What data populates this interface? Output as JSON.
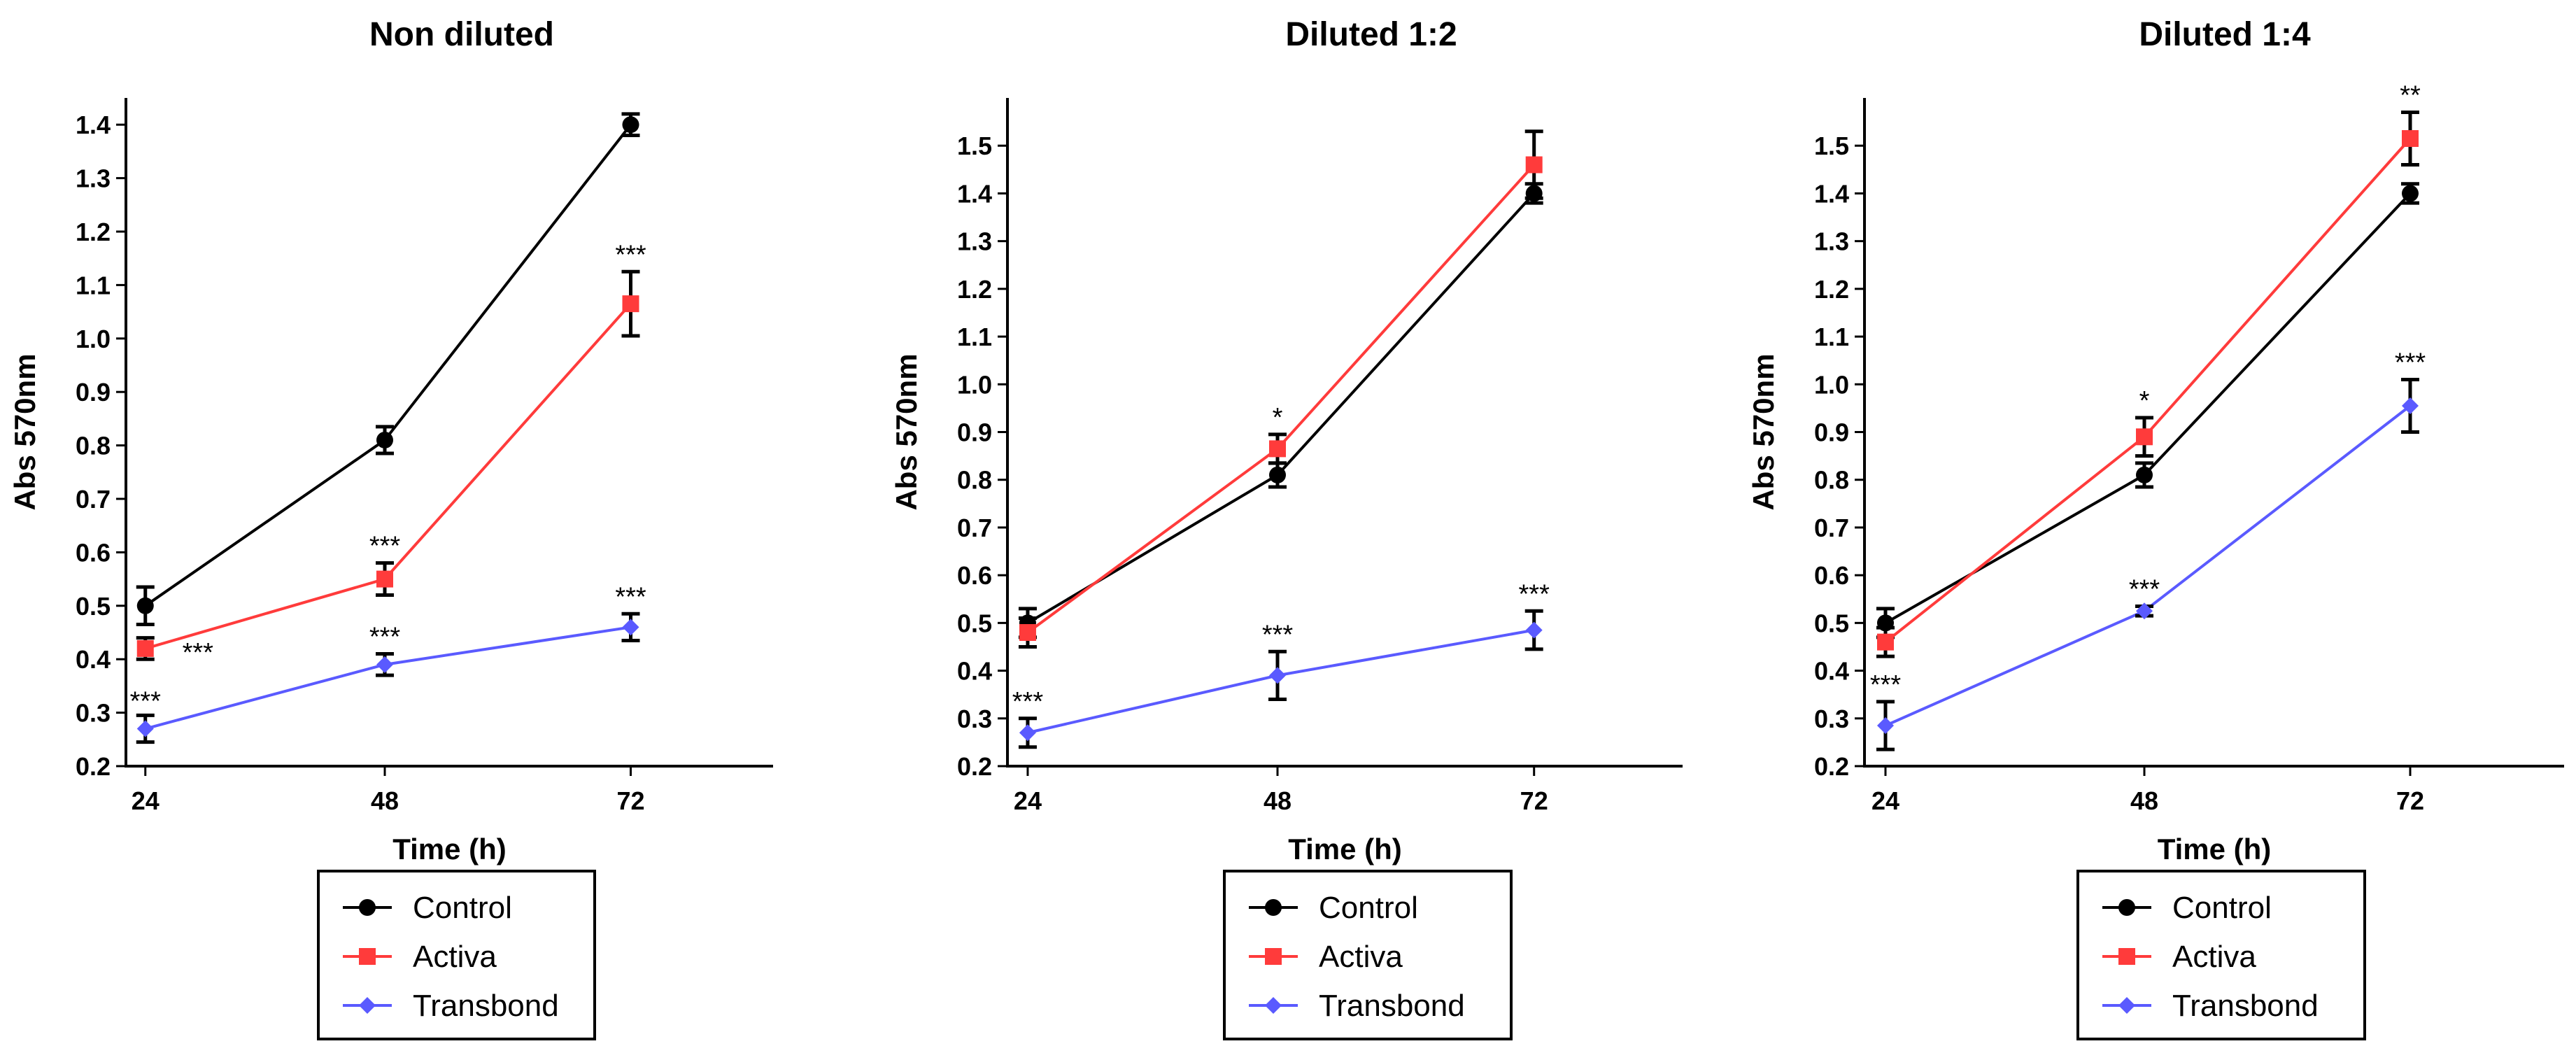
{
  "chart_data": [
    {
      "type": "line",
      "title": "Non diluted",
      "xlabel": "Time (h)",
      "ylabel": "Abs 570nm",
      "x": [
        24,
        48,
        72
      ],
      "ylim": [
        0.2,
        1.45
      ],
      "yticks": [
        0.2,
        0.3,
        0.4,
        0.5,
        0.6,
        0.7,
        0.8,
        0.9,
        1.0,
        1.1,
        1.2,
        1.3,
        1.4
      ],
      "legend_position": "bottom-center",
      "series": [
        {
          "name": "Control",
          "color": "#000000",
          "marker": "circle",
          "values": [
            0.5,
            0.81,
            1.4
          ],
          "errors": [
            0.035,
            0.025,
            0.02
          ],
          "sig": [
            "",
            "",
            ""
          ]
        },
        {
          "name": "Activa",
          "color": "#ff3b3b",
          "marker": "square",
          "values": [
            0.42,
            0.55,
            1.065
          ],
          "errors": [
            0.02,
            0.03,
            0.06
          ],
          "sig": [
            "***",
            "***",
            "***"
          ]
        },
        {
          "name": "Transbond",
          "color": "#5a5aff",
          "marker": "diamond",
          "values": [
            0.27,
            0.39,
            0.46
          ],
          "errors": [
            0.025,
            0.02,
            0.025
          ],
          "sig": [
            "***",
            "***",
            "***"
          ]
        }
      ]
    },
    {
      "type": "line",
      "title": "Diluted 1:2",
      "xlabel": "Time (h)",
      "ylabel": "Abs 570nm",
      "x": [
        24,
        48,
        72
      ],
      "ylim": [
        0.2,
        1.6
      ],
      "yticks": [
        0.2,
        0.3,
        0.4,
        0.5,
        0.6,
        0.7,
        0.8,
        0.9,
        1.0,
        1.1,
        1.2,
        1.3,
        1.4,
        1.5
      ],
      "legend_position": "bottom-center",
      "series": [
        {
          "name": "Control",
          "color": "#000000",
          "marker": "circle",
          "values": [
            0.5,
            0.81,
            1.4
          ],
          "errors": [
            0.03,
            0.025,
            0.02
          ],
          "sig": [
            "",
            "",
            ""
          ]
        },
        {
          "name": "Activa",
          "color": "#ff3b3b",
          "marker": "square",
          "values": [
            0.48,
            0.865,
            1.46
          ],
          "errors": [
            0.03,
            0.03,
            0.07
          ],
          "sig": [
            "",
            "*",
            ""
          ]
        },
        {
          "name": "Transbond",
          "color": "#5a5aff",
          "marker": "diamond",
          "values": [
            0.27,
            0.39,
            0.485
          ],
          "errors": [
            0.03,
            0.05,
            0.04
          ],
          "sig": [
            "***",
            "***",
            "***"
          ]
        }
      ]
    },
    {
      "type": "line",
      "title": "Diluted 1:4",
      "xlabel": "Time (h)",
      "ylabel": "Abs 570nm",
      "x": [
        24,
        48,
        72
      ],
      "ylim": [
        0.2,
        1.6
      ],
      "yticks": [
        0.2,
        0.3,
        0.4,
        0.5,
        0.6,
        0.7,
        0.8,
        0.9,
        1.0,
        1.1,
        1.2,
        1.3,
        1.4,
        1.5
      ],
      "legend_position": "bottom-center",
      "series": [
        {
          "name": "Control",
          "color": "#000000",
          "marker": "circle",
          "values": [
            0.5,
            0.81,
            1.4
          ],
          "errors": [
            0.03,
            0.025,
            0.02
          ],
          "sig": [
            "",
            "",
            ""
          ]
        },
        {
          "name": "Activa",
          "color": "#ff3b3b",
          "marker": "square",
          "values": [
            0.46,
            0.89,
            1.515
          ],
          "errors": [
            0.03,
            0.04,
            0.055
          ],
          "sig": [
            "",
            "*",
            "**"
          ]
        },
        {
          "name": "Transbond",
          "color": "#5a5aff",
          "marker": "diamond",
          "values": [
            0.285,
            0.525,
            0.955
          ],
          "errors": [
            0.05,
            0.01,
            0.055
          ],
          "sig": [
            "***",
            "***",
            "***"
          ]
        }
      ]
    }
  ]
}
